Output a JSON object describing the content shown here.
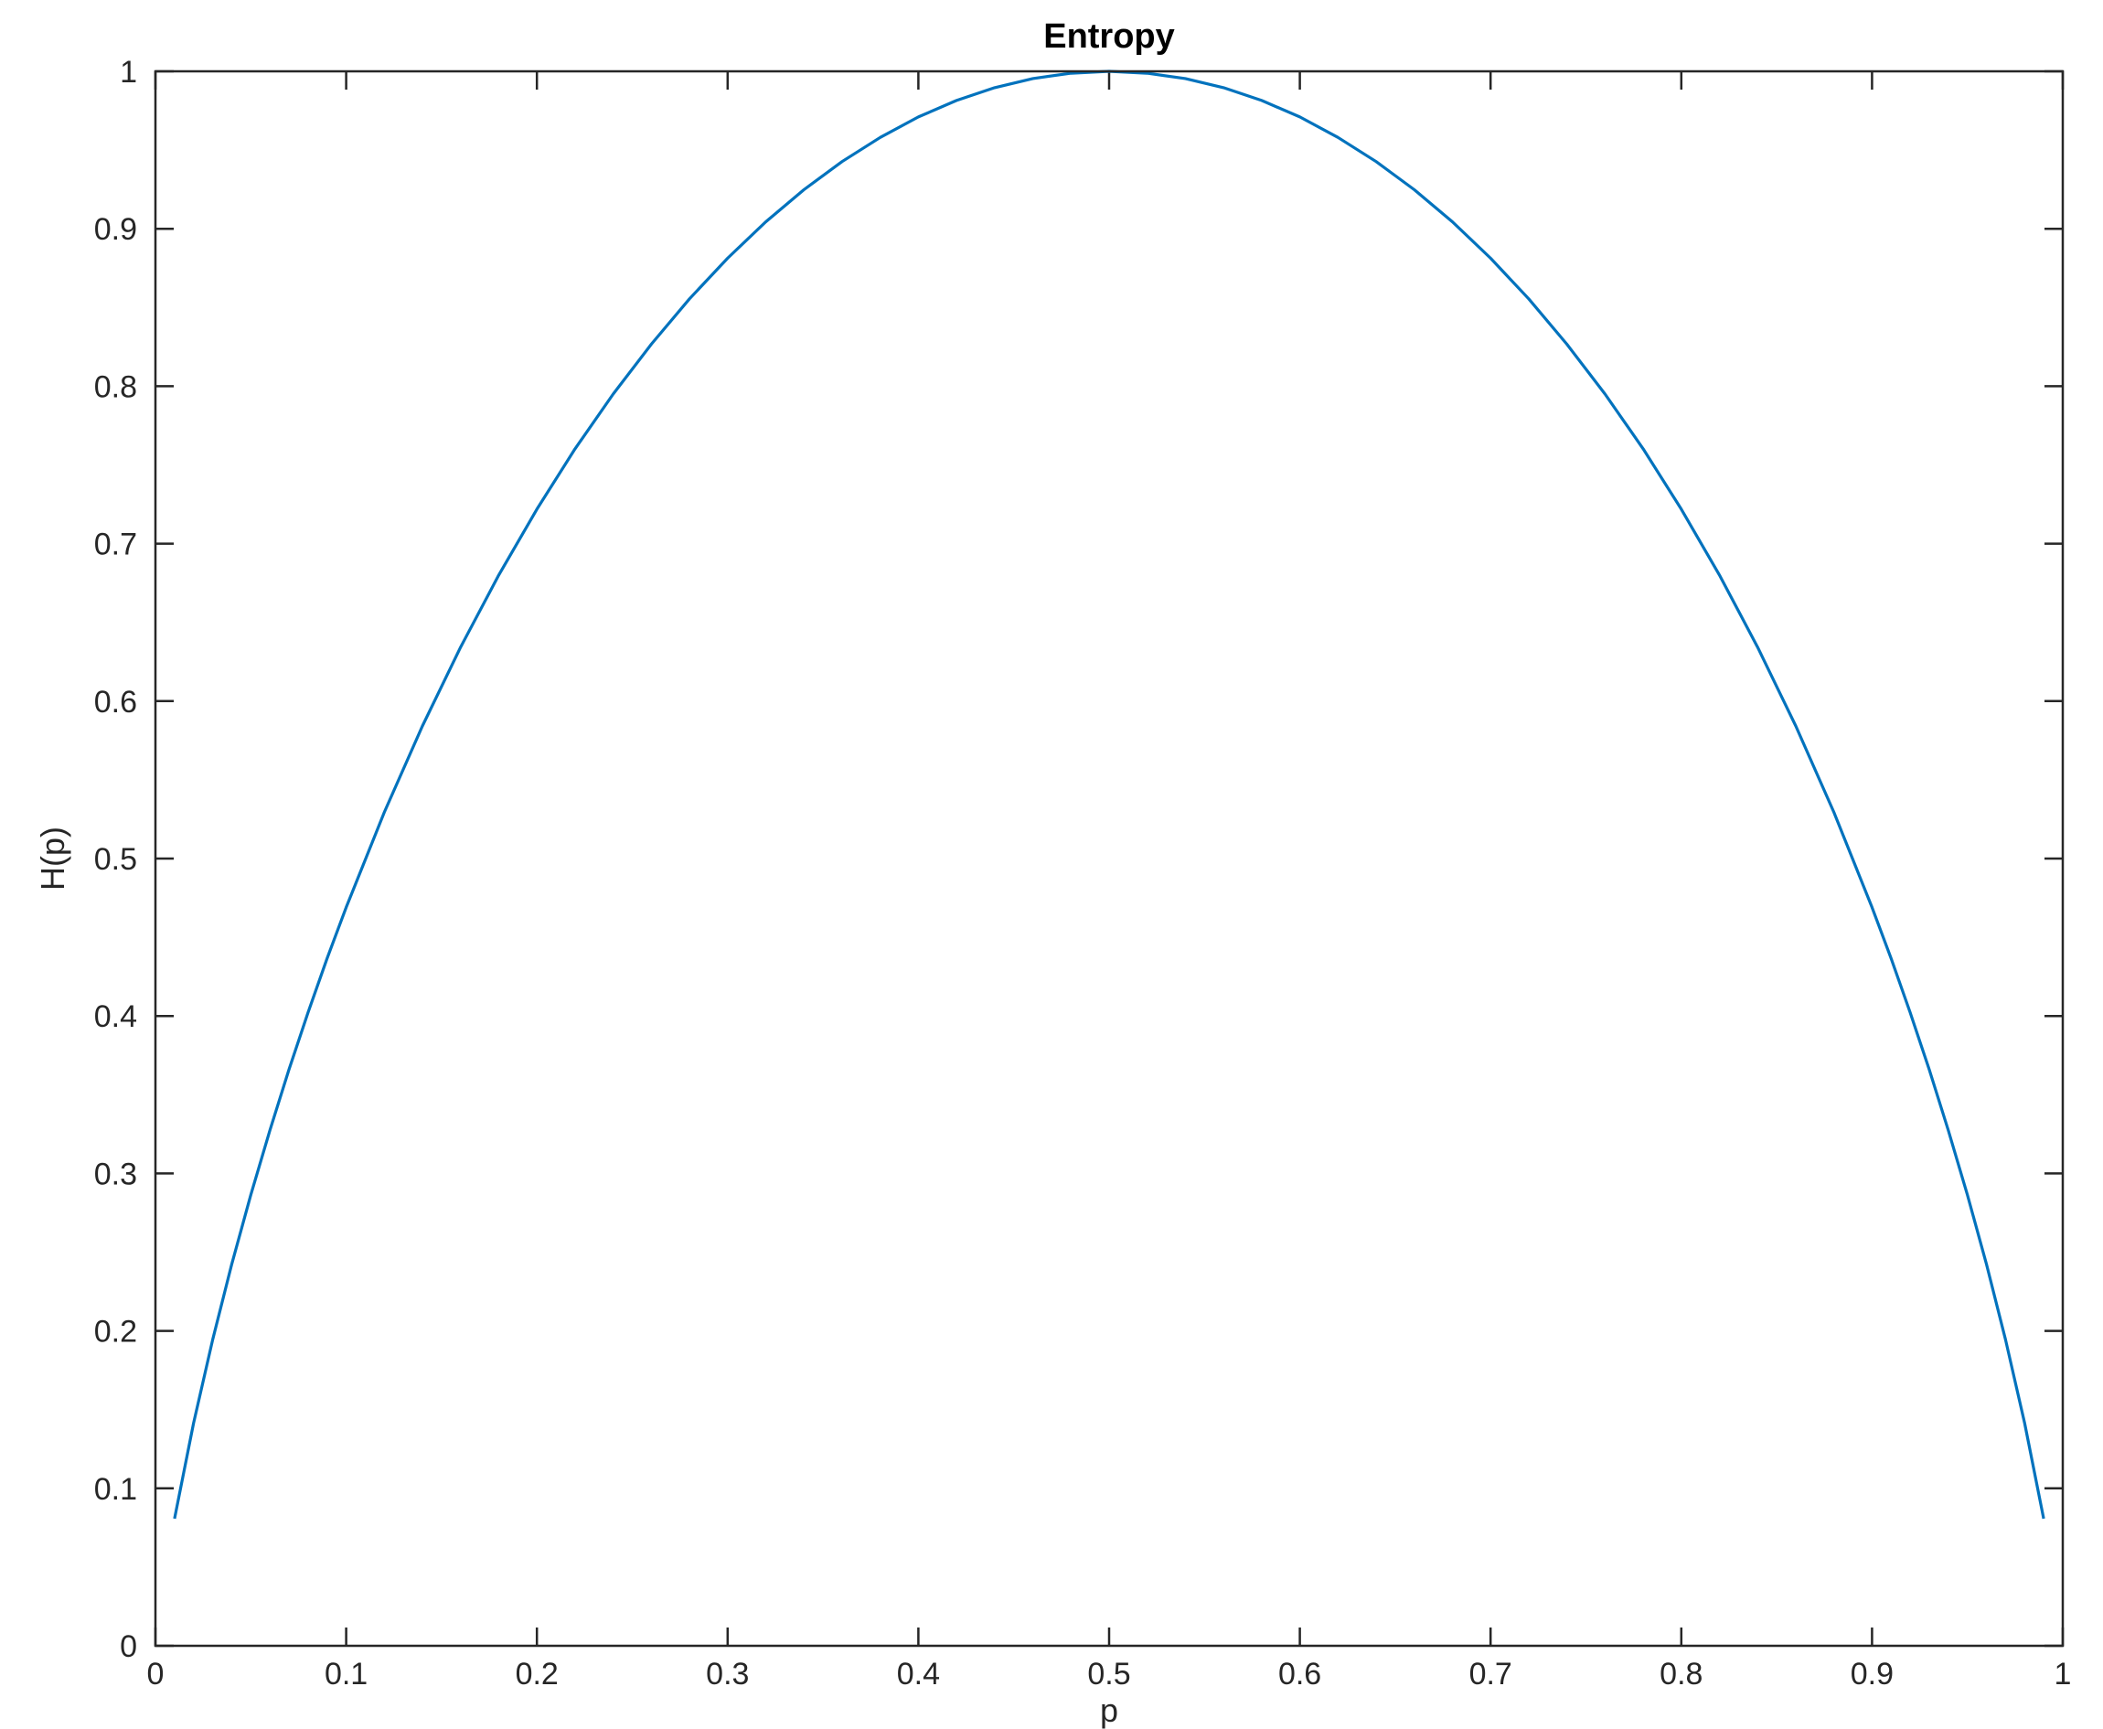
{
  "chart_data": {
    "type": "line",
    "title": "Entropy",
    "xlabel": "p",
    "ylabel": "H(p)",
    "xlim": [
      0,
      1
    ],
    "ylim": [
      0,
      1
    ],
    "xticks": [
      "0",
      "0.1",
      "0.2",
      "0.3",
      "0.4",
      "0.5",
      "0.6",
      "0.7",
      "0.8",
      "0.9",
      "1"
    ],
    "yticks": [
      "0",
      "0.1",
      "0.2",
      "0.3",
      "0.4",
      "0.5",
      "0.6",
      "0.7",
      "0.8",
      "0.9",
      "1"
    ],
    "grid": false,
    "legend": "none",
    "series": [
      {
        "color": "#0072BD",
        "x": [
          0.01,
          0.02,
          0.03,
          0.04,
          0.05,
          0.06,
          0.07,
          0.08,
          0.09,
          0.1,
          0.12,
          0.14,
          0.16,
          0.18,
          0.2,
          0.22,
          0.24,
          0.26,
          0.28,
          0.3,
          0.32,
          0.34,
          0.36,
          0.38,
          0.4,
          0.42,
          0.44,
          0.46,
          0.48,
          0.5,
          0.52,
          0.54,
          0.56,
          0.58,
          0.6,
          0.62,
          0.64,
          0.66,
          0.68,
          0.7,
          0.72,
          0.74,
          0.76,
          0.78,
          0.8,
          0.82,
          0.84,
          0.86,
          0.88,
          0.9,
          0.91,
          0.92,
          0.93,
          0.94,
          0.95,
          0.96,
          0.97,
          0.98,
          0.99
        ],
        "y": [
          0.0808,
          0.1414,
          0.1944,
          0.2423,
          0.2864,
          0.3274,
          0.3659,
          0.4022,
          0.4365,
          0.469,
          0.5294,
          0.5842,
          0.6343,
          0.6801,
          0.7219,
          0.7602,
          0.795,
          0.8267,
          0.8555,
          0.8813,
          0.9044,
          0.9248,
          0.9427,
          0.958,
          0.971,
          0.9815,
          0.9896,
          0.9954,
          0.9988,
          1.0,
          0.9988,
          0.9954,
          0.9896,
          0.9815,
          0.971,
          0.958,
          0.9427,
          0.9248,
          0.9044,
          0.8813,
          0.8555,
          0.8267,
          0.795,
          0.7602,
          0.7219,
          0.6801,
          0.6343,
          0.5842,
          0.5294,
          0.469,
          0.4365,
          0.4022,
          0.3659,
          0.3274,
          0.2864,
          0.2423,
          0.1944,
          0.1414,
          0.0808
        ]
      }
    ]
  }
}
